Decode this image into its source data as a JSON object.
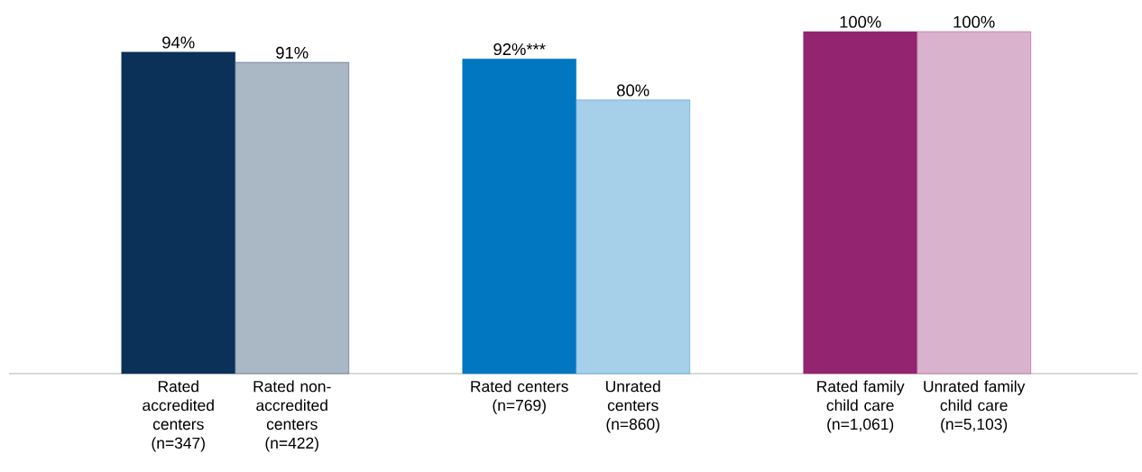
{
  "chart_data": {
    "type": "bar",
    "categories": [
      "Rated accredited centers (n=347)",
      "Rated non-accredited centers (n=422)",
      null,
      "Rated centers (n=769)",
      "Unrated centers (n=860)",
      null,
      "Rated family child care (n=1,061)",
      "Unrated family child care (n=5,103)"
    ],
    "values": [
      94,
      91,
      null,
      92,
      80,
      null,
      100,
      100
    ],
    "colors": [
      "#0b3158",
      "#0b3158",
      null,
      "#0077c0",
      "#0077c0",
      null,
      "#93246f",
      "#93246f"
    ],
    "value_labels": [
      "94%",
      "91%",
      null,
      "92%***",
      "80%",
      null,
      "100%",
      "100%"
    ]
  }
}
